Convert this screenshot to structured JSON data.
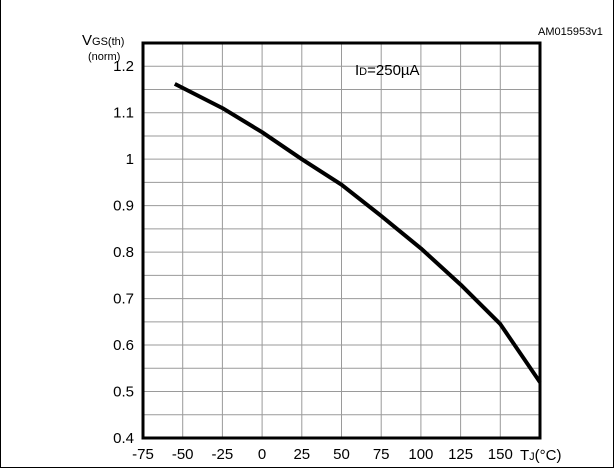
{
  "figure_code": "AM015953v1",
  "chart_data": {
    "type": "line",
    "ylabel_main": "V",
    "ylabel_sub": "GS(th)",
    "ylabel_note": "(norm)",
    "xlabel_main": "T",
    "xlabel_sub": "J",
    "xlabel_unit": "(°C)",
    "annotation_main": "I",
    "annotation_sub": "D",
    "annotation_value": "=250µA",
    "xlim": [
      -75,
      175
    ],
    "ylim": [
      0.4,
      1.25
    ],
    "x_ticks": [
      "-75",
      "-50",
      "-25",
      "0",
      "25",
      "50",
      "75",
      "100",
      "125",
      "150"
    ],
    "y_ticks": [
      "0.4",
      "0.5",
      "0.6",
      "0.7",
      "0.8",
      "0.9",
      "1",
      "1.1",
      "1.2"
    ],
    "grid": true,
    "series": [
      {
        "x": [
          -55,
          -25,
          0,
          25,
          50,
          75,
          100,
          125,
          150,
          175
        ],
        "values": [
          1.162,
          1.11,
          1.058,
          1.0,
          0.945,
          0.878,
          0.808,
          0.73,
          0.645,
          0.52
        ]
      }
    ]
  },
  "colors": {
    "line": "#000000",
    "grid": "#9a9a9a",
    "axes": "#000000"
  }
}
